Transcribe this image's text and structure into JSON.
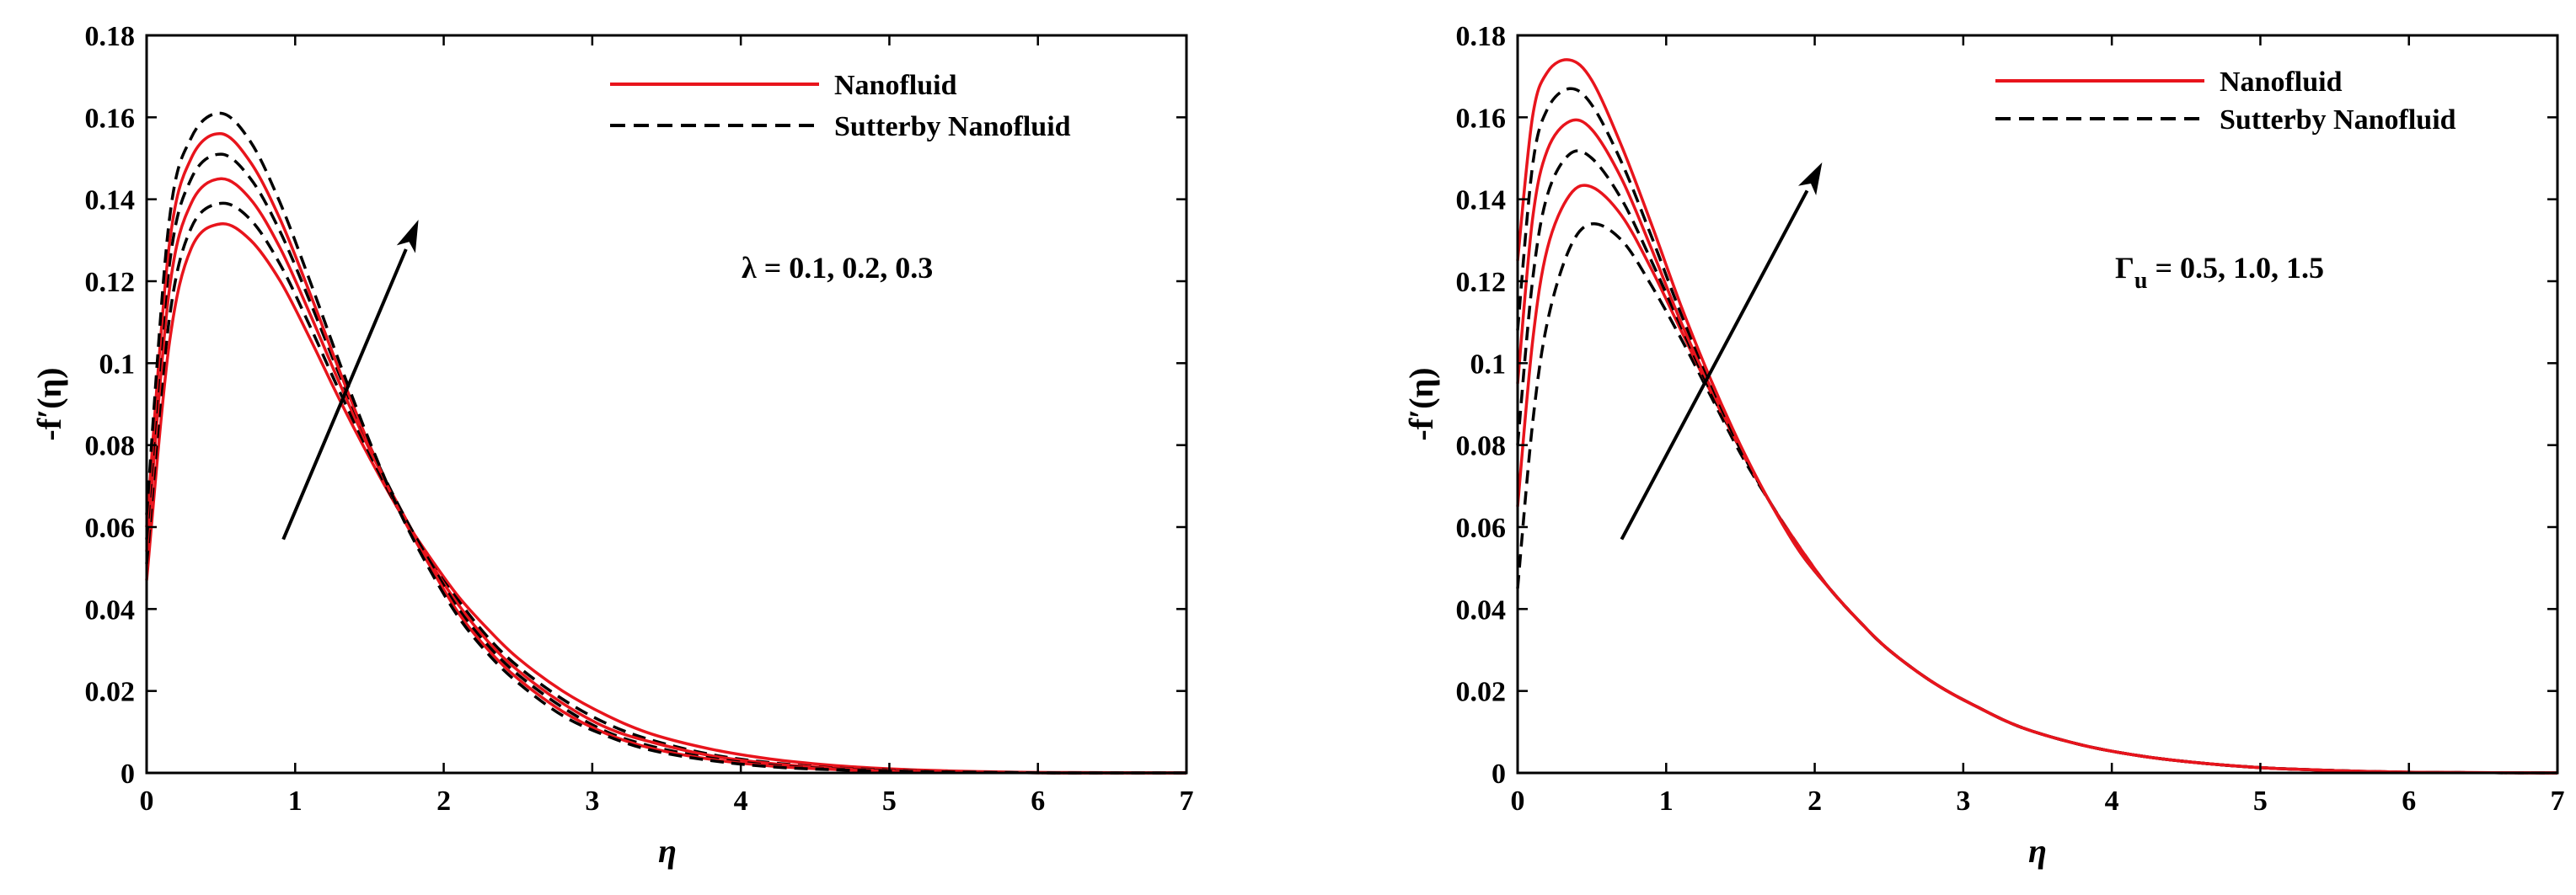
{
  "chart_data": [
    {
      "type": "line",
      "xlabel": "η",
      "ylabel": "-f′(η)",
      "xlim": [
        0,
        7
      ],
      "ylim": [
        0,
        0.18
      ],
      "xticks": [
        "0",
        "1",
        "2",
        "3",
        "4",
        "5",
        "6",
        "7"
      ],
      "yticks": [
        "0",
        "0.02",
        "0.04",
        "0.06",
        "0.08",
        "0.1",
        "0.12",
        "0.14",
        "0.16",
        "0.18"
      ],
      "grid": false,
      "legend": {
        "position": "top-right",
        "entries": [
          {
            "name": "Nanofluid",
            "color": "#e8141c",
            "style": "solid"
          },
          {
            "name": "Sutterby Nanofluid",
            "color": "#000000",
            "style": "dashed"
          }
        ]
      },
      "annotation": {
        "symbol": "λ",
        "subscript": "",
        "text": " = 0.1, 0.2, 0.3",
        "arrow_from": [
          0.92,
          0.057
        ],
        "arrow_to": [
          1.83,
          0.135
        ]
      },
      "series": [
        {
          "name": "Nanofluid",
          "color": "#e8141c",
          "style": "solid",
          "x": [
            0,
            0.15,
            0.3,
            0.5,
            0.7,
            0.9,
            1.1,
            1.3,
            1.5,
            1.7,
            1.9,
            2.1,
            2.3,
            2.5,
            2.8,
            3.1,
            3.4,
            3.8,
            4.2,
            4.6,
            5.0,
            5.4,
            5.8,
            6.2,
            7.0
          ],
          "values": [
            0.047,
            0.104,
            0.128,
            0.134,
            0.13,
            0.12,
            0.106,
            0.091,
            0.077,
            0.064,
            0.053,
            0.043,
            0.035,
            0.028,
            0.02,
            0.014,
            0.0095,
            0.0058,
            0.0034,
            0.0019,
            0.001,
            0.0005,
            0.0002,
            0.0001,
            0.0
          ]
        },
        {
          "name": "Sutterby Nanofluid",
          "color": "#000000",
          "style": "dashed",
          "x": [
            0,
            0.15,
            0.3,
            0.5,
            0.7,
            0.9,
            1.1,
            1.3,
            1.5,
            1.7,
            1.9,
            2.1,
            2.3,
            2.5,
            2.8,
            3.1,
            3.4,
            3.8,
            4.2,
            4.6,
            5.0,
            5.4,
            5.8,
            6.2,
            7.0
          ],
          "values": [
            0.051,
            0.11,
            0.133,
            0.139,
            0.135,
            0.124,
            0.109,
            0.093,
            0.078,
            0.064,
            0.052,
            0.042,
            0.033,
            0.026,
            0.018,
            0.012,
            0.008,
            0.0045,
            0.0025,
            0.0013,
            0.0007,
            0.0003,
            0.0001,
            0.0,
            0.0
          ]
        },
        {
          "name": "Nanofluid",
          "color": "#e8141c",
          "style": "solid",
          "x": [
            0,
            0.15,
            0.3,
            0.5,
            0.7,
            0.9,
            1.1,
            1.3,
            1.5,
            1.7,
            1.9,
            2.1,
            2.3,
            2.5,
            2.8,
            3.1,
            3.4,
            3.8,
            4.2,
            4.6,
            5.0,
            5.4,
            5.8,
            6.2,
            7.0
          ],
          "values": [
            0.054,
            0.117,
            0.139,
            0.145,
            0.14,
            0.128,
            0.112,
            0.095,
            0.079,
            0.065,
            0.052,
            0.041,
            0.032,
            0.025,
            0.017,
            0.011,
            0.0075,
            0.0042,
            0.0023,
            0.0012,
            0.0006,
            0.0003,
            0.0001,
            0.0,
            0.0
          ]
        },
        {
          "name": "Sutterby Nanofluid",
          "color": "#000000",
          "style": "dashed",
          "x": [
            0,
            0.15,
            0.3,
            0.5,
            0.7,
            0.9,
            1.1,
            1.3,
            1.5,
            1.7,
            1.9,
            2.1,
            2.3,
            2.5,
            2.8,
            3.1,
            3.4,
            3.8,
            4.2,
            4.6,
            5.0,
            5.4,
            5.8,
            6.2,
            7.0
          ],
          "values": [
            0.057,
            0.123,
            0.145,
            0.151,
            0.145,
            0.132,
            0.115,
            0.097,
            0.08,
            0.065,
            0.052,
            0.04,
            0.031,
            0.024,
            0.016,
            0.01,
            0.0065,
            0.0036,
            0.0019,
            0.001,
            0.0005,
            0.0002,
            0.0001,
            0.0,
            0.0
          ]
        },
        {
          "name": "Nanofluid",
          "color": "#e8141c",
          "style": "solid",
          "x": [
            0,
            0.15,
            0.3,
            0.5,
            0.7,
            0.9,
            1.1,
            1.3,
            1.5,
            1.7,
            1.9,
            2.1,
            2.3,
            2.5,
            2.8,
            3.1,
            3.4,
            3.8,
            4.2,
            4.6,
            5.0,
            5.4,
            5.8,
            6.2,
            7.0
          ],
          "values": [
            0.06,
            0.128,
            0.15,
            0.156,
            0.149,
            0.135,
            0.117,
            0.098,
            0.08,
            0.064,
            0.051,
            0.039,
            0.03,
            0.023,
            0.015,
            0.0095,
            0.006,
            0.0033,
            0.0017,
            0.0009,
            0.0004,
            0.0002,
            0.0001,
            0.0,
            0.0
          ]
        },
        {
          "name": "Sutterby Nanofluid",
          "color": "#000000",
          "style": "dashed",
          "x": [
            0,
            0.15,
            0.3,
            0.5,
            0.7,
            0.9,
            1.1,
            1.3,
            1.5,
            1.7,
            1.9,
            2.1,
            2.3,
            2.5,
            2.8,
            3.1,
            3.4,
            3.8,
            4.2,
            4.6,
            5.0,
            5.4,
            5.8,
            6.2,
            7.0
          ],
          "values": [
            0.063,
            0.134,
            0.155,
            0.161,
            0.154,
            0.139,
            0.12,
            0.1,
            0.081,
            0.064,
            0.05,
            0.038,
            0.029,
            0.022,
            0.014,
            0.009,
            0.0055,
            0.003,
            0.0015,
            0.0008,
            0.0004,
            0.0002,
            0.0001,
            0.0,
            0.0
          ]
        }
      ]
    },
    {
      "type": "line",
      "xlabel": "η",
      "ylabel": "-f′(η)",
      "xlim": [
        0,
        7
      ],
      "ylim": [
        0,
        0.18
      ],
      "xticks": [
        "0",
        "1",
        "2",
        "3",
        "4",
        "5",
        "6",
        "7"
      ],
      "yticks": [
        "0",
        "0.02",
        "0.04",
        "0.06",
        "0.08",
        "0.1",
        "0.12",
        "0.14",
        "0.16",
        "0.18"
      ],
      "grid": false,
      "legend": {
        "position": "top-right",
        "entries": [
          {
            "name": "Nanofluid",
            "color": "#e8141c",
            "style": "solid"
          },
          {
            "name": "Sutterby Nanofluid",
            "color": "#000000",
            "style": "dashed"
          }
        ]
      },
      "annotation": {
        "symbol": "Γ",
        "subscript": "u",
        "text": " = 0.5, 1.0, 1.5",
        "arrow_from": [
          0.7,
          0.057
        ],
        "arrow_to": [
          2.05,
          0.149
        ]
      },
      "series": [
        {
          "name": "Sutterby Nanofluid",
          "color": "#000000",
          "style": "dashed",
          "x": [
            0,
            0.1,
            0.2,
            0.35,
            0.5,
            0.7,
            0.9,
            1.1,
            1.3,
            1.5,
            1.7,
            1.9,
            2.1,
            2.3,
            2.5,
            2.8,
            3.1,
            3.4,
            3.8,
            4.2,
            4.6,
            5.0,
            5.4,
            5.8,
            6.2,
            7.0
          ],
          "values": [
            0.045,
            0.085,
            0.11,
            0.128,
            0.134,
            0.13,
            0.119,
            0.106,
            0.092,
            0.078,
            0.066,
            0.055,
            0.045,
            0.037,
            0.03,
            0.022,
            0.016,
            0.011,
            0.0068,
            0.0041,
            0.0024,
            0.0013,
            0.0007,
            0.0003,
            0.0001,
            0.0
          ]
        },
        {
          "name": "Nanofluid",
          "color": "#e8141c",
          "style": "solid",
          "x": [
            0,
            0.1,
            0.2,
            0.35,
            0.5,
            0.7,
            0.9,
            1.1,
            1.3,
            1.5,
            1.7,
            1.9,
            2.1,
            2.3,
            2.5,
            2.8,
            3.1,
            3.4,
            3.8,
            4.2,
            4.6,
            5.0,
            5.4,
            5.8,
            6.2,
            7.0
          ],
          "values": [
            0.065,
            0.105,
            0.128,
            0.141,
            0.143,
            0.136,
            0.123,
            0.108,
            0.093,
            0.079,
            0.066,
            0.055,
            0.045,
            0.037,
            0.03,
            0.022,
            0.016,
            0.011,
            0.0068,
            0.0041,
            0.0024,
            0.0013,
            0.0007,
            0.0003,
            0.0001,
            0.0
          ]
        },
        {
          "name": "Sutterby Nanofluid",
          "color": "#000000",
          "style": "dashed",
          "x": [
            0,
            0.1,
            0.2,
            0.35,
            0.5,
            0.7,
            0.9,
            1.1,
            1.3,
            1.5,
            1.7,
            1.9,
            2.1,
            2.3,
            2.5,
            2.8,
            3.1,
            3.4,
            3.8,
            4.2,
            4.6,
            5.0,
            5.4,
            5.8,
            6.2,
            7.0
          ],
          "values": [
            0.08,
            0.12,
            0.141,
            0.151,
            0.15,
            0.14,
            0.125,
            0.109,
            0.093,
            0.079,
            0.066,
            0.054,
            0.045,
            0.037,
            0.03,
            0.022,
            0.016,
            0.011,
            0.0068,
            0.0041,
            0.0024,
            0.0013,
            0.0007,
            0.0003,
            0.0001,
            0.0
          ]
        },
        {
          "name": "Nanofluid",
          "color": "#e8141c",
          "style": "solid",
          "x": [
            0,
            0.1,
            0.2,
            0.35,
            0.5,
            0.7,
            0.9,
            1.1,
            1.3,
            1.5,
            1.7,
            1.9,
            2.1,
            2.3,
            2.5,
            2.8,
            3.1,
            3.4,
            3.8,
            4.2,
            4.6,
            5.0,
            5.4,
            5.8,
            6.2,
            7.0
          ],
          "values": [
            0.095,
            0.135,
            0.152,
            0.159,
            0.157,
            0.145,
            0.128,
            0.11,
            0.094,
            0.079,
            0.066,
            0.054,
            0.045,
            0.037,
            0.03,
            0.022,
            0.016,
            0.011,
            0.0068,
            0.0041,
            0.0024,
            0.0013,
            0.0007,
            0.0003,
            0.0001,
            0.0
          ]
        },
        {
          "name": "Sutterby Nanofluid",
          "color": "#000000",
          "style": "dashed",
          "x": [
            0,
            0.1,
            0.2,
            0.35,
            0.5,
            0.7,
            0.9,
            1.1,
            1.3,
            1.5,
            1.7,
            1.9,
            2.1,
            2.3,
            2.5,
            2.8,
            3.1,
            3.4,
            3.8,
            4.2,
            4.6,
            5.0,
            5.4,
            5.8,
            6.2,
            7.0
          ],
          "values": [
            0.108,
            0.148,
            0.162,
            0.167,
            0.163,
            0.149,
            0.131,
            0.112,
            0.095,
            0.079,
            0.066,
            0.054,
            0.045,
            0.037,
            0.03,
            0.022,
            0.016,
            0.011,
            0.0068,
            0.0041,
            0.0024,
            0.0013,
            0.0007,
            0.0003,
            0.0001,
            0.0
          ]
        },
        {
          "name": "Nanofluid",
          "color": "#e8141c",
          "style": "solid",
          "x": [
            0,
            0.1,
            0.2,
            0.35,
            0.5,
            0.7,
            0.9,
            1.1,
            1.3,
            1.5,
            1.7,
            1.9,
            2.1,
            2.3,
            2.5,
            2.8,
            3.1,
            3.4,
            3.8,
            4.2,
            4.6,
            5.0,
            5.4,
            5.8,
            6.2,
            7.0
          ],
          "values": [
            0.125,
            0.16,
            0.171,
            0.174,
            0.169,
            0.153,
            0.134,
            0.114,
            0.096,
            0.08,
            0.066,
            0.054,
            0.045,
            0.037,
            0.03,
            0.022,
            0.016,
            0.011,
            0.0068,
            0.0041,
            0.0024,
            0.0013,
            0.0007,
            0.0003,
            0.0001,
            0.0
          ]
        }
      ]
    }
  ]
}
